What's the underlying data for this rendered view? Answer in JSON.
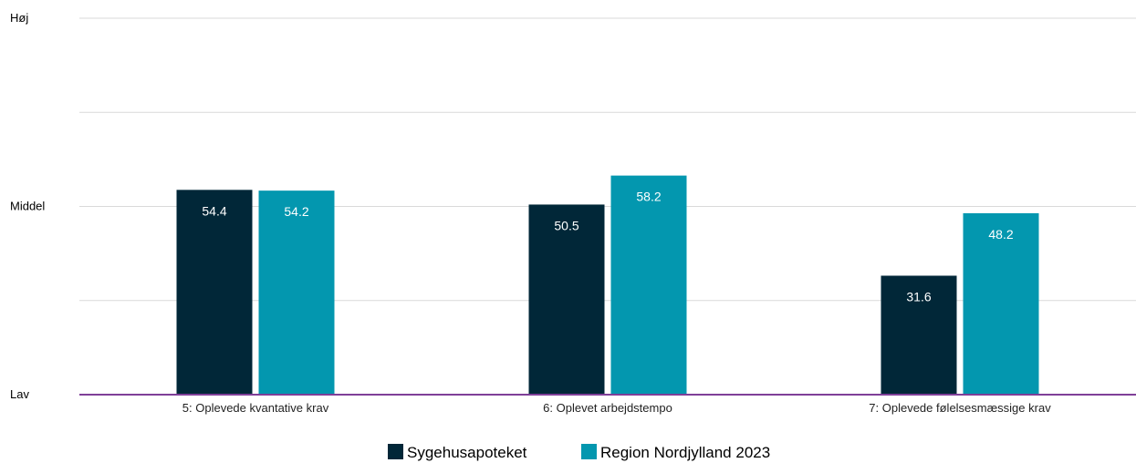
{
  "chart_data": {
    "type": "bar",
    "categories": [
      "5: Oplevede kvantative krav",
      "6: Oplevet arbejdstempo",
      "7: Oplevede følelsesmæssige krav"
    ],
    "series": [
      {
        "name": "Sygehusapoteket",
        "values": [
          54.4,
          50.5,
          31.6
        ],
        "color": "#012738"
      },
      {
        "name": "Region Nordjylland 2023",
        "values": [
          54.2,
          58.2,
          48.2
        ],
        "color": "#0397AF"
      }
    ],
    "value_labels": [
      [
        "54.4",
        "50.5",
        "31.6"
      ],
      [
        "54.2",
        "58.2",
        "48.2"
      ]
    ],
    "ylim": [
      0,
      100
    ],
    "yticks": [
      {
        "value": 0,
        "label": "Lav"
      },
      {
        "value": 25,
        "label": ""
      },
      {
        "value": 50,
        "label": "Middel"
      },
      {
        "value": 75,
        "label": ""
      },
      {
        "value": 100,
        "label": "Høj"
      }
    ],
    "grid": true,
    "gridline_color": "#d9d9d9",
    "baseline_color": "#7f3f98",
    "legend_position": "bottom-center"
  }
}
